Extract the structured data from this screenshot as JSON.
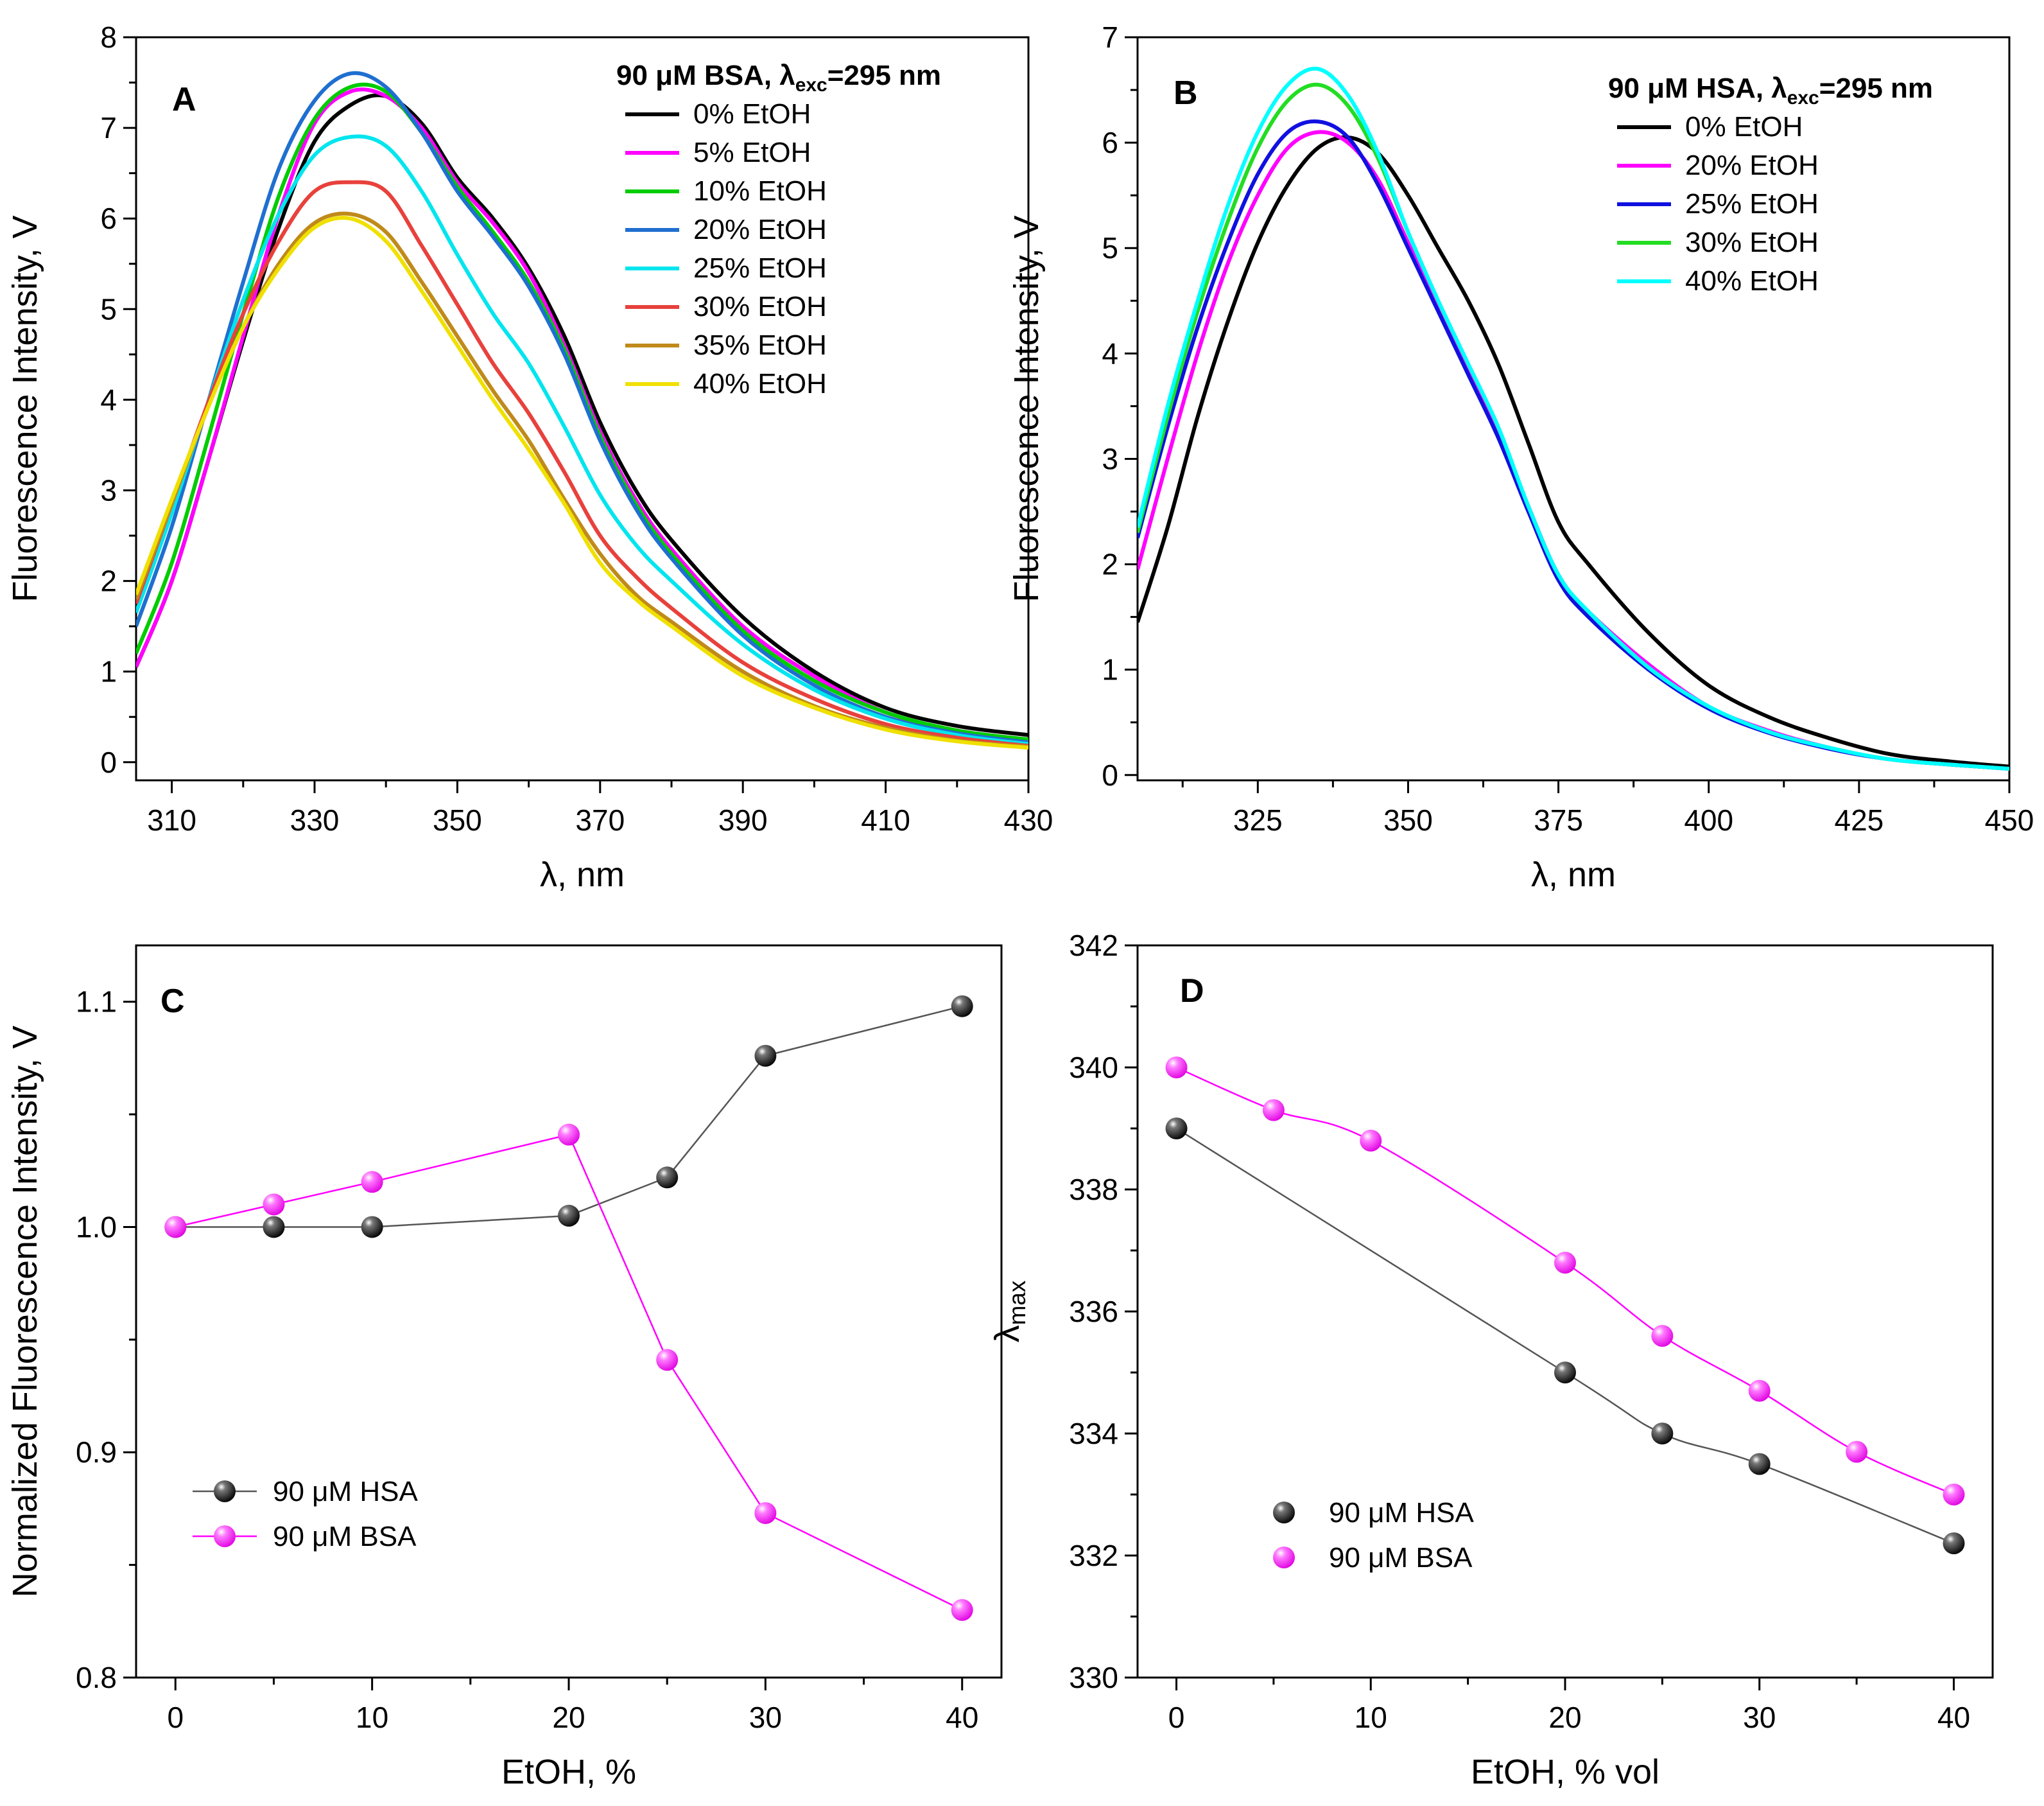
{
  "chart_data": [
    {
      "panel": "A",
      "type": "line",
      "legend_title": "90 μM BSA, λexc=295 nm",
      "xlabel": "λ, nm",
      "ylabel": "Fluorescence Intensity, V",
      "xlim": [
        305,
        430
      ],
      "ylim": [
        -0.2,
        8
      ],
      "xticks": [
        310,
        330,
        350,
        370,
        390,
        410,
        430
      ],
      "yticks": [
        0,
        1,
        2,
        3,
        4,
        5,
        6,
        7,
        8
      ],
      "legend_position": "top-right",
      "series": [
        {
          "name": "0% EtOH",
          "color": "#000000",
          "x": [
            305,
            310,
            315,
            320,
            325,
            330,
            335,
            340,
            345,
            350,
            355,
            360,
            365,
            370,
            375,
            380,
            390,
            400,
            410,
            420,
            430
          ],
          "y": [
            1.05,
            2.0,
            3.3,
            4.65,
            5.9,
            6.85,
            7.25,
            7.35,
            7.05,
            6.45,
            6.0,
            5.45,
            4.7,
            3.75,
            3.0,
            2.45,
            1.6,
            1.0,
            0.6,
            0.4,
            0.3
          ]
        },
        {
          "name": "5% EtOH",
          "color": "#ff00ff",
          "x": [
            305,
            310,
            315,
            320,
            325,
            330,
            335,
            340,
            345,
            350,
            355,
            360,
            365,
            370,
            375,
            380,
            390,
            400,
            410,
            420,
            430
          ],
          "y": [
            1.05,
            2.0,
            3.3,
            4.7,
            6.05,
            7.05,
            7.4,
            7.35,
            7.0,
            6.4,
            5.95,
            5.4,
            4.6,
            3.65,
            2.9,
            2.35,
            1.5,
            0.95,
            0.55,
            0.35,
            0.25
          ]
        },
        {
          "name": "10% EtOH",
          "color": "#00cc00",
          "x": [
            305,
            310,
            315,
            320,
            325,
            330,
            335,
            340,
            345,
            350,
            355,
            360,
            365,
            370,
            375,
            380,
            390,
            400,
            410,
            420,
            430
          ],
          "y": [
            1.2,
            2.2,
            3.55,
            4.95,
            6.25,
            7.1,
            7.45,
            7.4,
            6.95,
            6.35,
            5.85,
            5.3,
            4.55,
            3.6,
            2.85,
            2.3,
            1.45,
            0.9,
            0.55,
            0.35,
            0.25
          ]
        },
        {
          "name": "20% EtOH",
          "color": "#1f6fd0",
          "x": [
            305,
            310,
            315,
            320,
            325,
            330,
            335,
            340,
            345,
            350,
            355,
            360,
            365,
            370,
            375,
            380,
            390,
            400,
            410,
            420,
            430
          ],
          "y": [
            1.5,
            2.6,
            3.95,
            5.3,
            6.55,
            7.3,
            7.6,
            7.45,
            6.95,
            6.3,
            5.8,
            5.25,
            4.5,
            3.55,
            2.8,
            2.25,
            1.4,
            0.85,
            0.5,
            0.32,
            0.22
          ]
        },
        {
          "name": "25% EtOH",
          "color": "#00e5ee",
          "x": [
            305,
            310,
            315,
            320,
            325,
            330,
            335,
            340,
            345,
            350,
            355,
            360,
            365,
            370,
            375,
            380,
            390,
            400,
            410,
            420,
            430
          ],
          "y": [
            1.65,
            2.75,
            3.95,
            5.1,
            6.05,
            6.7,
            6.9,
            6.8,
            6.3,
            5.6,
            4.95,
            4.4,
            3.7,
            2.95,
            2.4,
            2.0,
            1.3,
            0.8,
            0.48,
            0.3,
            0.2
          ]
        },
        {
          "name": "30% EtOH",
          "color": "#e8413c",
          "x": [
            305,
            310,
            315,
            320,
            325,
            330,
            335,
            340,
            345,
            350,
            355,
            360,
            365,
            370,
            375,
            380,
            390,
            400,
            410,
            420,
            430
          ],
          "y": [
            1.75,
            2.85,
            3.95,
            4.95,
            5.75,
            6.3,
            6.4,
            6.3,
            5.7,
            5.05,
            4.4,
            3.85,
            3.2,
            2.5,
            2.05,
            1.7,
            1.1,
            0.7,
            0.42,
            0.27,
            0.18
          ]
        },
        {
          "name": "35% EtOH",
          "color": "#c08a1a",
          "x": [
            305,
            310,
            315,
            320,
            325,
            330,
            335,
            340,
            345,
            350,
            355,
            360,
            365,
            370,
            375,
            380,
            390,
            400,
            410,
            420,
            430
          ],
          "y": [
            1.8,
            2.85,
            3.9,
            4.8,
            5.5,
            5.95,
            6.05,
            5.85,
            5.3,
            4.7,
            4.1,
            3.55,
            2.9,
            2.3,
            1.85,
            1.55,
            1.0,
            0.62,
            0.38,
            0.24,
            0.17
          ]
        },
        {
          "name": "40% EtOH",
          "color": "#f0e000",
          "x": [
            305,
            310,
            315,
            320,
            325,
            330,
            335,
            340,
            345,
            350,
            355,
            360,
            365,
            370,
            375,
            380,
            390,
            400,
            410,
            420,
            430
          ],
          "y": [
            1.85,
            2.9,
            3.9,
            4.8,
            5.45,
            5.9,
            6.0,
            5.75,
            5.2,
            4.6,
            4.0,
            3.45,
            2.85,
            2.2,
            1.8,
            1.5,
            0.95,
            0.6,
            0.36,
            0.23,
            0.16
          ]
        }
      ]
    },
    {
      "panel": "B",
      "type": "line",
      "legend_title": "90 μM HSA, λexc=295 nm",
      "xlabel": "λ, nm",
      "ylabel": "Fluorescence Intensity, V",
      "xlim": [
        305,
        450
      ],
      "ylim": [
        -0.05,
        7
      ],
      "xticks": [
        325,
        350,
        375,
        400,
        425,
        450
      ],
      "yticks": [
        0,
        1,
        2,
        3,
        4,
        5,
        6,
        7
      ],
      "legend_position": "top-right",
      "series": [
        {
          "name": "0% EtOH",
          "color": "#000000",
          "x": [
            305,
            310,
            315,
            320,
            325,
            330,
            335,
            340,
            345,
            350,
            355,
            360,
            365,
            370,
            375,
            380,
            390,
            400,
            410,
            420,
            430,
            440,
            450
          ],
          "y": [
            1.45,
            2.35,
            3.4,
            4.3,
            5.05,
            5.6,
            5.95,
            6.05,
            5.9,
            5.5,
            5.0,
            4.5,
            3.9,
            3.15,
            2.4,
            2.0,
            1.35,
            0.85,
            0.55,
            0.35,
            0.2,
            0.13,
            0.08
          ]
        },
        {
          "name": "20% EtOH",
          "color": "#ff00ff",
          "x": [
            305,
            310,
            315,
            320,
            325,
            330,
            335,
            340,
            345,
            350,
            355,
            360,
            365,
            370,
            375,
            380,
            390,
            400,
            410,
            420,
            430,
            440,
            450
          ],
          "y": [
            1.95,
            3.0,
            4.0,
            4.85,
            5.5,
            5.95,
            6.1,
            6.0,
            5.65,
            5.05,
            4.45,
            3.85,
            3.25,
            2.55,
            1.9,
            1.55,
            1.05,
            0.65,
            0.42,
            0.26,
            0.15,
            0.1,
            0.06
          ]
        },
        {
          "name": "25% EtOH",
          "color": "#1010e0",
          "x": [
            305,
            310,
            315,
            320,
            325,
            330,
            335,
            340,
            345,
            350,
            355,
            360,
            365,
            370,
            375,
            380,
            390,
            400,
            410,
            420,
            430,
            440,
            450
          ],
          "y": [
            2.25,
            3.3,
            4.25,
            5.05,
            5.7,
            6.1,
            6.2,
            6.05,
            5.6,
            5.0,
            4.4,
            3.8,
            3.2,
            2.5,
            1.85,
            1.5,
            1.0,
            0.63,
            0.4,
            0.25,
            0.15,
            0.1,
            0.06
          ]
        },
        {
          "name": "30% EtOH",
          "color": "#22dd22",
          "x": [
            305,
            310,
            315,
            320,
            325,
            330,
            335,
            340,
            345,
            350,
            355,
            360,
            365,
            370,
            375,
            380,
            390,
            400,
            410,
            420,
            430,
            440,
            450
          ],
          "y": [
            2.3,
            3.4,
            4.4,
            5.25,
            5.95,
            6.4,
            6.55,
            6.35,
            5.85,
            5.15,
            4.5,
            3.9,
            3.3,
            2.55,
            1.9,
            1.55,
            1.02,
            0.65,
            0.41,
            0.26,
            0.15,
            0.1,
            0.06
          ]
        },
        {
          "name": "40% EtOH",
          "color": "#00ffff",
          "x": [
            305,
            310,
            315,
            320,
            325,
            330,
            335,
            340,
            345,
            350,
            355,
            360,
            365,
            370,
            375,
            380,
            390,
            400,
            410,
            420,
            430,
            440,
            450
          ],
          "y": [
            2.35,
            3.5,
            4.5,
            5.4,
            6.1,
            6.55,
            6.7,
            6.45,
            5.9,
            5.15,
            4.5,
            3.9,
            3.3,
            2.55,
            1.9,
            1.55,
            1.02,
            0.65,
            0.41,
            0.26,
            0.15,
            0.1,
            0.06
          ]
        }
      ]
    },
    {
      "panel": "C",
      "type": "scatter",
      "xlabel": "EtOH, %",
      "ylabel": "Normalized Fluorescence Intensity, V",
      "xlim": [
        -2,
        42
      ],
      "ylim": [
        0.8,
        1.125
      ],
      "xticks": [
        0,
        10,
        20,
        30,
        40
      ],
      "yticks": [
        0.8,
        0.9,
        1.0,
        1.1
      ],
      "ytick_labels": [
        "0.8",
        "0.9",
        "1.0",
        "1.1"
      ],
      "legend_position": "bottom-left",
      "series": [
        {
          "name": "90 μM HSA",
          "color": "#000000",
          "x": [
            0,
            5,
            10,
            20,
            25,
            30,
            40
          ],
          "y": [
            1.0,
            1.0,
            1.0,
            1.005,
            1.022,
            1.076,
            1.098
          ]
        },
        {
          "name": "90 μM BSA",
          "color": "#ff00ff",
          "x": [
            0,
            5,
            10,
            20,
            25,
            30,
            40
          ],
          "y": [
            1.0,
            1.01,
            1.02,
            1.041,
            0.941,
            0.873,
            0.83
          ]
        }
      ]
    },
    {
      "panel": "D",
      "type": "scatter",
      "xlabel": "EtOH, % vol",
      "ylabel": "λmax",
      "xlim": [
        -2,
        42
      ],
      "ylim": [
        330,
        342
      ],
      "xticks": [
        0,
        10,
        20,
        30,
        40
      ],
      "yticks": [
        330,
        332,
        334,
        336,
        338,
        340,
        342
      ],
      "legend_position": "bottom-left",
      "series": [
        {
          "name": "90 μM HSA",
          "color": "#000000",
          "x": [
            0,
            20,
            25,
            30,
            40
          ],
          "y": [
            339,
            335,
            334,
            333.5,
            332.2
          ]
        },
        {
          "name": "90 μM BSA",
          "color": "#ff00ff",
          "x": [
            0,
            5,
            10,
            20,
            25,
            30,
            35,
            40
          ],
          "y": [
            340,
            339.3,
            338.8,
            336.8,
            335.6,
            334.7,
            333.7,
            333
          ]
        }
      ]
    }
  ]
}
